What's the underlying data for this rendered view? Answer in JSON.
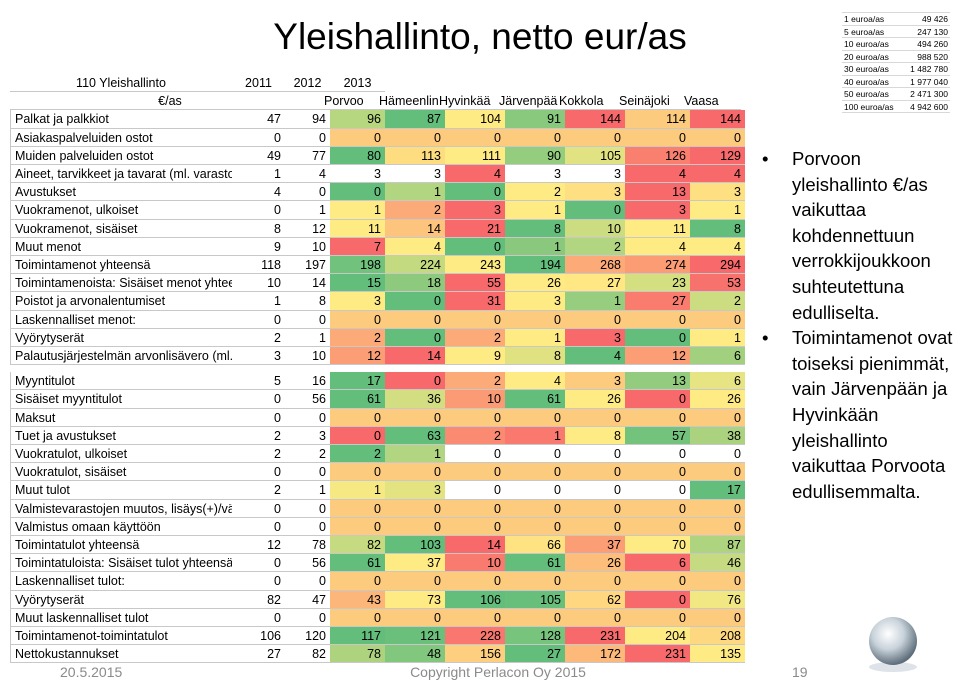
{
  "title": "Yleishallinto, netto eur/as",
  "table": {
    "header": {
      "label": "110 Yleishallinto",
      "years": [
        "2011",
        "2012",
        "2013"
      ],
      "unit": "€/as",
      "cities": [
        "Porvoo",
        "Hämeenlin",
        "Hyvinkää",
        "Järvenpää",
        "Kokkola",
        "Seinäjoki",
        "Vaasa"
      ]
    },
    "sections": [
      {
        "high": "red",
        "rows": [
          {
            "label": "Palkat ja palkkiot",
            "values": [
              47,
              94,
              96,
              87,
              104,
              91,
              144,
              114,
              144
            ]
          },
          {
            "label": "Asiakaspalveluiden ostot",
            "values": [
              0,
              0,
              0,
              0,
              0,
              0,
              0,
              0,
              0
            ]
          },
          {
            "label": "Muiden palveluiden ostot",
            "values": [
              49,
              77,
              80,
              113,
              111,
              90,
              105,
              126,
              129
            ]
          },
          {
            "label": "Aineet, tarvikkeet ja tavarat (ml. varasto",
            "values": [
              1,
              4,
              3,
              3,
              4,
              3,
              3,
              4,
              4
            ]
          },
          {
            "label": "Avustukset",
            "values": [
              4,
              0,
              0,
              1,
              0,
              2,
              3,
              13,
              3
            ]
          },
          {
            "label": "Vuokramenot, ulkoiset",
            "values": [
              0,
              1,
              1,
              2,
              3,
              1,
              0,
              3,
              1
            ]
          },
          {
            "label": "Vuokramenot, sisäiset",
            "values": [
              8,
              12,
              11,
              14,
              21,
              8,
              10,
              11,
              8
            ]
          },
          {
            "label": "Muut menot",
            "values": [
              9,
              10,
              7,
              4,
              0,
              1,
              2,
              4,
              4
            ]
          },
          {
            "label": "Toimintamenot yhteensä",
            "values": [
              118,
              197,
              198,
              224,
              243,
              194,
              268,
              274,
              294
            ]
          },
          {
            "label": "Toimintamenoista: Sisäiset menot yhtee",
            "values": [
              10,
              14,
              15,
              18,
              55,
              26,
              27,
              23,
              53
            ]
          },
          {
            "label": "Poistot ja arvonalentumiset",
            "values": [
              1,
              8,
              3,
              0,
              31,
              3,
              1,
              27,
              2
            ]
          },
          {
            "label": "Laskennalliset menot:",
            "values": [
              0,
              0,
              0,
              0,
              0,
              0,
              0,
              0,
              0
            ]
          },
          {
            "label": "Vyörytyserät",
            "values": [
              2,
              1,
              2,
              0,
              2,
              1,
              3,
              0,
              1
            ]
          },
          {
            "label": "Palautusjärjestelmän arvonlisävero (ml.",
            "values": [
              3,
              10,
              12,
              14,
              9,
              8,
              4,
              12,
              6
            ]
          }
        ]
      },
      {
        "high": "green",
        "rows": [
          {
            "label": "Myyntitulot",
            "values": [
              5,
              16,
              17,
              0,
              2,
              4,
              3,
              13,
              6
            ]
          },
          {
            "label": "Sisäiset myyntitulot",
            "values": [
              0,
              56,
              61,
              36,
              10,
              61,
              26,
              0,
              26
            ]
          },
          {
            "label": "Maksut",
            "values": [
              0,
              0,
              0,
              0,
              0,
              0,
              0,
              0,
              0
            ]
          },
          {
            "label": "Tuet ja avustukset",
            "values": [
              2,
              3,
              0,
              63,
              2,
              1,
              8,
              57,
              38
            ]
          },
          {
            "label": "Vuokratulot, ulkoiset",
            "values": [
              2,
              2,
              2,
              1,
              0,
              0,
              0,
              0,
              0
            ]
          },
          {
            "label": "Vuokratulot, sisäiset",
            "values": [
              0,
              0,
              0,
              0,
              0,
              0,
              0,
              0,
              0
            ]
          },
          {
            "label": "Muut tulot",
            "values": [
              2,
              1,
              1,
              3,
              0,
              0,
              0,
              0,
              17
            ]
          },
          {
            "label": "Valmistevarastojen muutos, lisäys(+)/vä",
            "values": [
              0,
              0,
              0,
              0,
              0,
              0,
              0,
              0,
              0
            ]
          },
          {
            "label": "Valmistus omaan käyttöön",
            "values": [
              0,
              0,
              0,
              0,
              0,
              0,
              0,
              0,
              0
            ]
          },
          {
            "label": "Toimintatulot yhteensä",
            "values": [
              12,
              78,
              82,
              103,
              14,
              66,
              37,
              70,
              87
            ]
          },
          {
            "label": "Toimintatuloista: Sisäiset tulot yhteensä",
            "values": [
              0,
              56,
              61,
              37,
              10,
              61,
              26,
              6,
              46
            ]
          },
          {
            "label": "Laskennalliset tulot:",
            "values": [
              0,
              0,
              0,
              0,
              0,
              0,
              0,
              0,
              0
            ]
          },
          {
            "label": "Vyörytyserät",
            "values": [
              82,
              47,
              43,
              73,
              106,
              105,
              62,
              0,
              76
            ]
          },
          {
            "label": "Muut laskennalliset tulot",
            "values": [
              0,
              0,
              0,
              0,
              0,
              0,
              0,
              0,
              0
            ]
          }
        ]
      },
      {
        "high": "red",
        "rows": [
          {
            "label": "Toimintamenot-toimintatulot",
            "values": [
              106,
              120,
              117,
              121,
              228,
              128,
              231,
              204,
              208
            ]
          },
          {
            "label": "Nettokustannukset",
            "values": [
              27,
              82,
              78,
              48,
              156,
              27,
              172,
              231,
              135
            ]
          }
        ]
      }
    ]
  },
  "mini_table": [
    [
      "1 euroa/as",
      "49 426"
    ],
    [
      "5 euroa/as",
      "247 130"
    ],
    [
      "10 euroa/as",
      "494 260"
    ],
    [
      "20 euroa/as",
      "988 520"
    ],
    [
      "30 euroa/as",
      "1 482 780"
    ],
    [
      "40 euroa/as",
      "1 977 040"
    ],
    [
      "50 euroa/as",
      "2 471 300"
    ],
    [
      "100 euroa/as",
      "4 942 600"
    ]
  ],
  "bullets": [
    "Porvoon yleishallinto €/as vaikuttaa kohdennettuun verrokkijoukkoon suhteutettuna edulliselta.",
    "Toimintamenot ovat toiseksi pienimmät, vain Järvenpään ja Hyvinkään yleishallinto vaikuttaa Porvoota edullisemmalta."
  ],
  "footer": {
    "date": "20.5.2015",
    "copyright": "Copyright Perlacon Oy 2015",
    "page": "19"
  }
}
